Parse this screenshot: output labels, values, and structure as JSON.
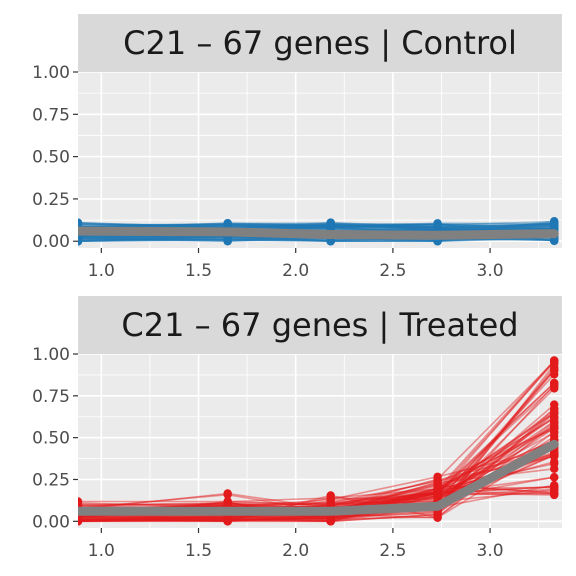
{
  "colors": {
    "panel_bg": "#ebebeb",
    "strip_bg": "#d9d9d9",
    "grid": "#ffffff",
    "control": "#1f77b4",
    "treated": "#e31a1c",
    "mean": "#808080"
  },
  "chart_data": [
    {
      "type": "line",
      "title": "C21 – 67 genes | Control",
      "xlabel": "",
      "ylabel": "",
      "x": [
        0.88,
        1.65,
        2.18,
        2.73,
        3.33
      ],
      "xlim": [
        0.88,
        3.37
      ],
      "ylim": [
        -0.04,
        1.0
      ],
      "xticks": [
        {
          "v": 1.0,
          "label": "1.0"
        },
        {
          "v": 1.5,
          "label": "1.5"
        },
        {
          "v": 2.0,
          "label": "2.0"
        },
        {
          "v": 2.5,
          "label": "2.5"
        },
        {
          "v": 3.0,
          "label": "3.0"
        }
      ],
      "yticks": [
        {
          "v": 0.0,
          "label": "0.00"
        },
        {
          "v": 0.25,
          "label": "0.25"
        },
        {
          "v": 0.5,
          "label": "0.50"
        },
        {
          "v": 0.75,
          "label": "0.75"
        },
        {
          "v": 1.0,
          "label": "1.00"
        }
      ],
      "grid": true,
      "genes": 67,
      "gene_color": "#1f77b4",
      "gene_start_range": [
        0.0,
        0.12
      ],
      "gene_end_range": [
        0.0,
        0.12
      ],
      "mean": [
        0.06,
        0.055,
        0.04,
        0.035,
        0.045
      ]
    },
    {
      "type": "line",
      "title": "C21 – 67 genes | Treated",
      "xlabel": "",
      "ylabel": "",
      "x": [
        0.88,
        1.65,
        2.18,
        2.73,
        3.33
      ],
      "xlim": [
        0.88,
        3.37
      ],
      "ylim": [
        -0.04,
        1.0
      ],
      "xticks": [
        {
          "v": 1.0,
          "label": "1.0"
        },
        {
          "v": 1.5,
          "label": "1.5"
        },
        {
          "v": 2.0,
          "label": "2.0"
        },
        {
          "v": 2.5,
          "label": "2.5"
        },
        {
          "v": 3.0,
          "label": "3.0"
        }
      ],
      "yticks": [
        {
          "v": 0.0,
          "label": "0.00"
        },
        {
          "v": 0.25,
          "label": "0.25"
        },
        {
          "v": 0.5,
          "label": "0.50"
        },
        {
          "v": 0.75,
          "label": "0.75"
        },
        {
          "v": 1.0,
          "label": "1.00"
        }
      ],
      "grid": true,
      "genes": 67,
      "gene_color": "#e31a1c",
      "gene_start_range": [
        0.0,
        0.12
      ],
      "gene_end_range": [
        0.15,
        0.97
      ],
      "mean": [
        0.06,
        0.06,
        0.06,
        0.09,
        0.46
      ]
    }
  ]
}
